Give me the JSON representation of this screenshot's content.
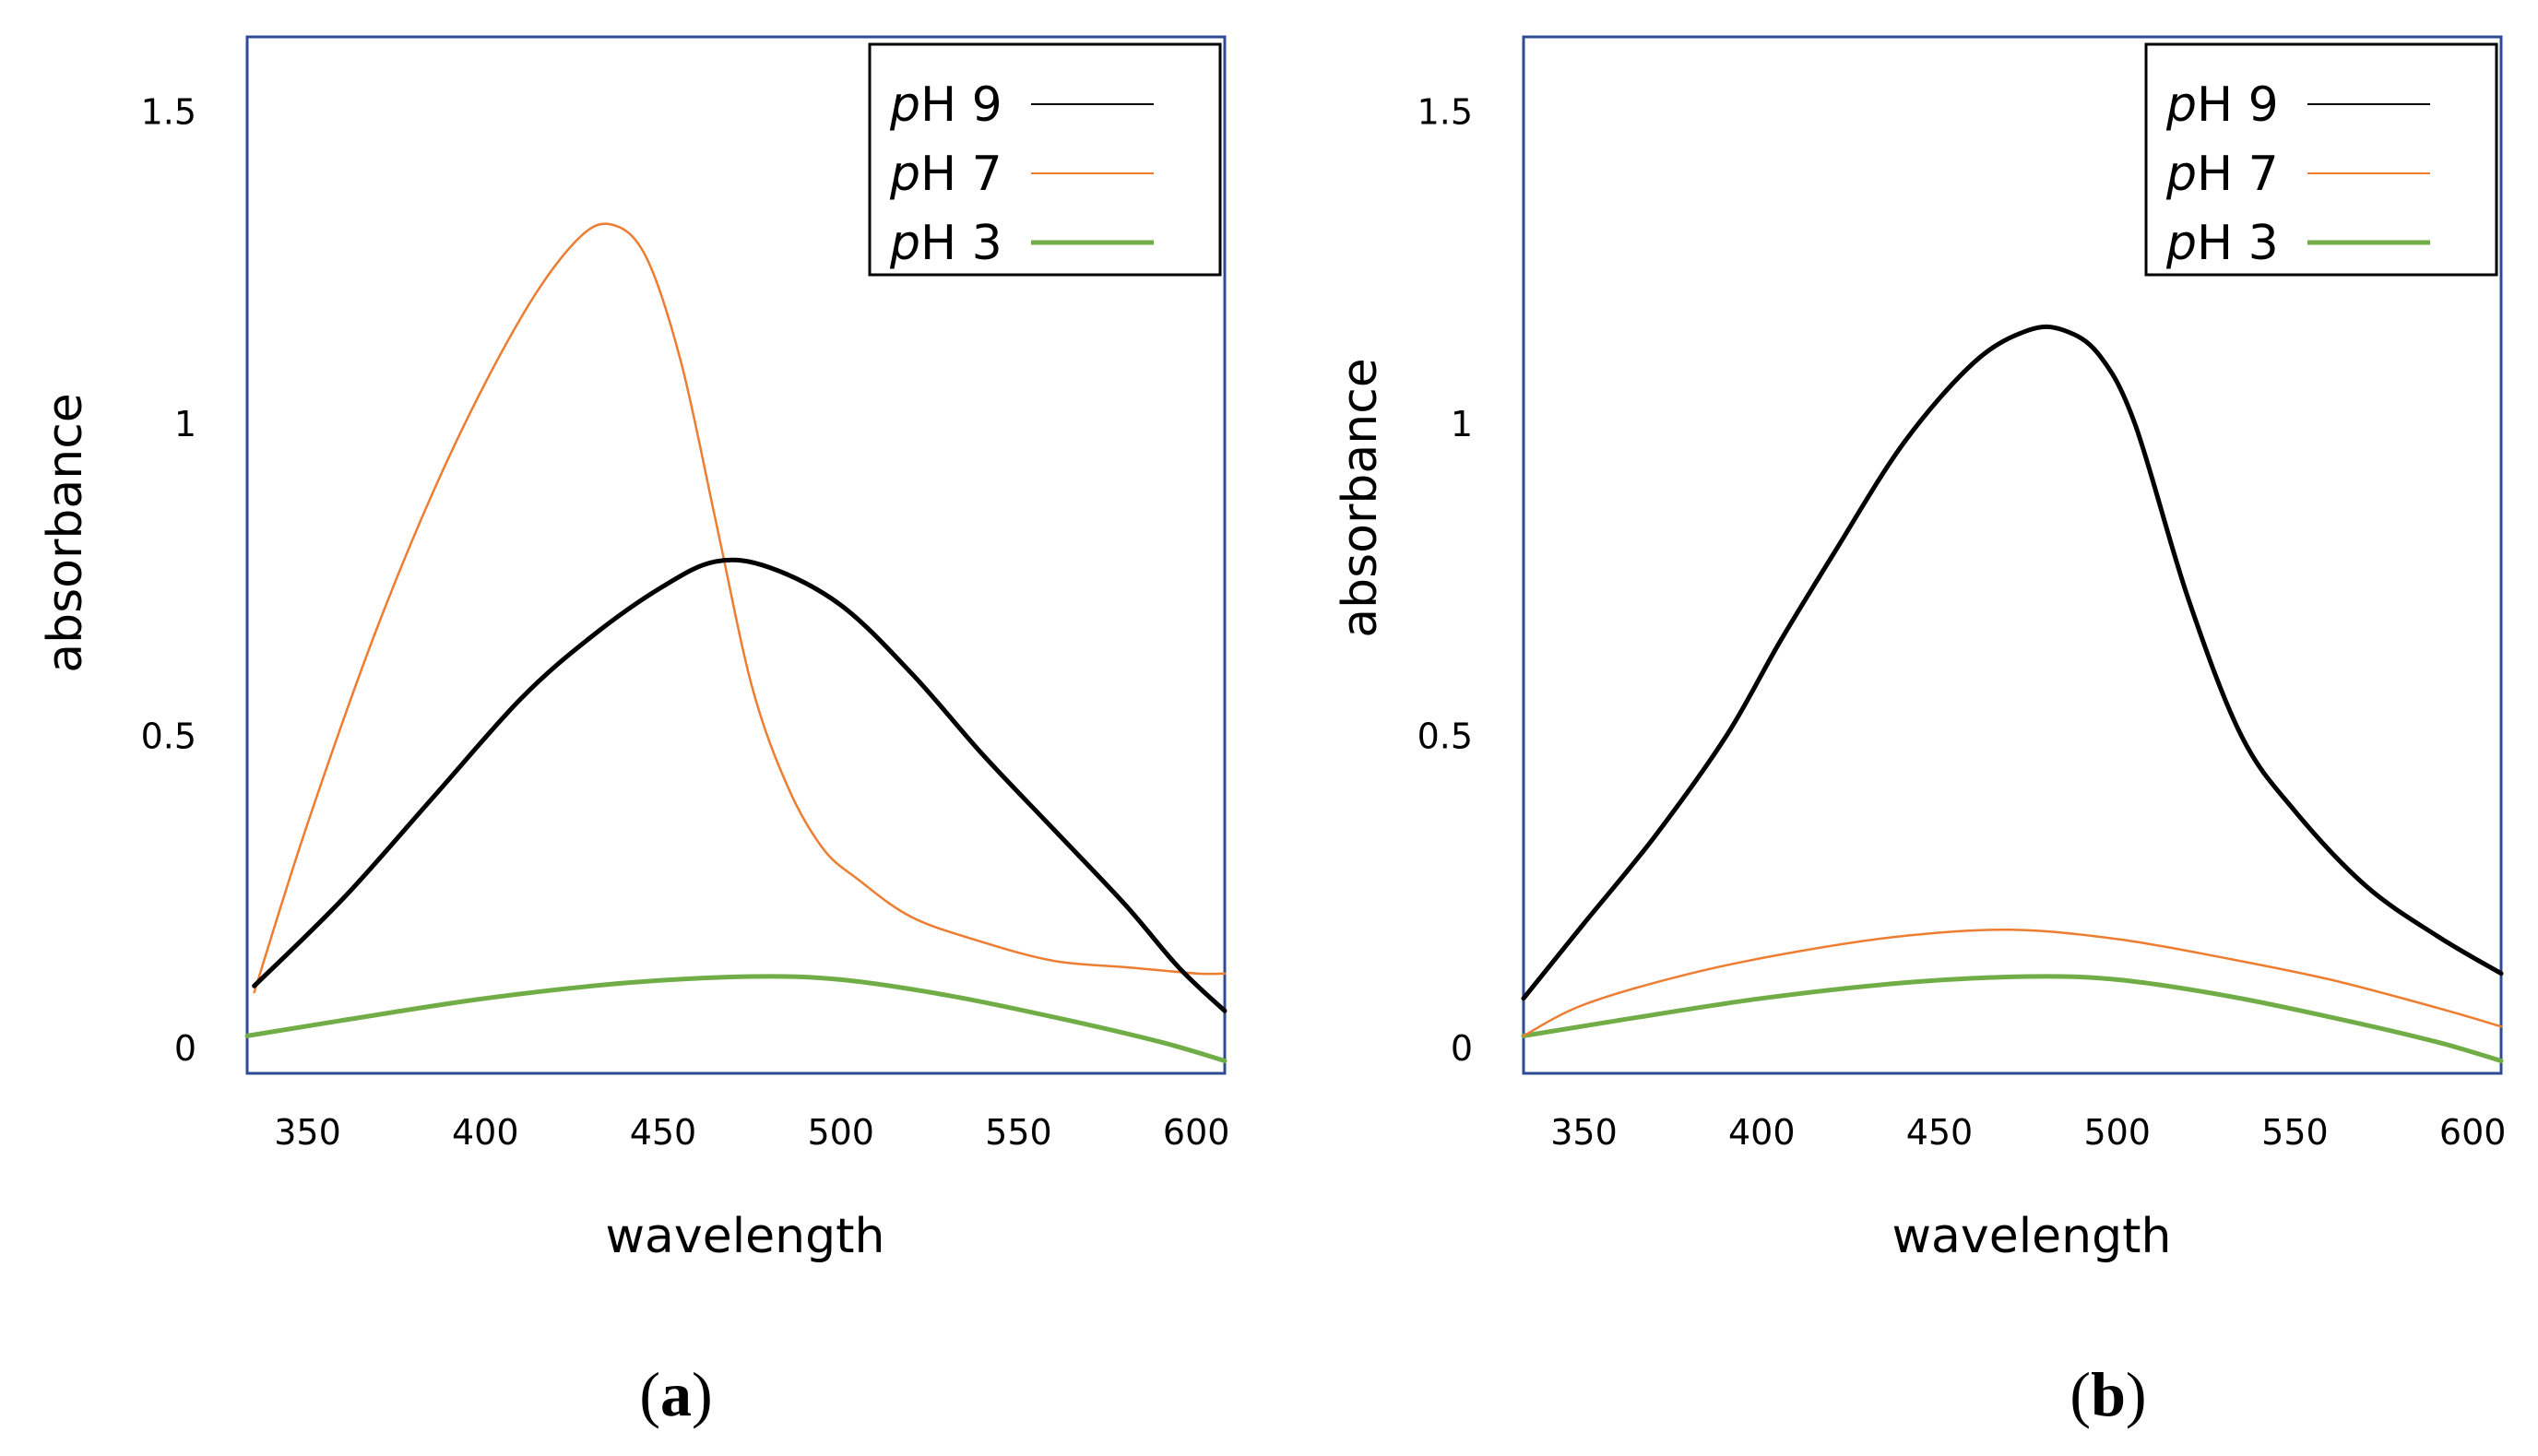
{
  "colors": {
    "frame": "#2e4b94",
    "pH9": "#000000",
    "pH7": "#ed7d31",
    "pH3": "#70ad47"
  },
  "chart_data": [
    {
      "type": "line",
      "panel": "(a)",
      "panel_label_open": "(",
      "panel_label_letter": "a",
      "panel_label_close": ")",
      "xlabel": "wavelength",
      "ylabel": "absorbance",
      "xlim": [
        333,
        608
      ],
      "ylim": [
        -0.04,
        1.62
      ],
      "xticks": [
        350,
        400,
        450,
        500,
        550,
        600
      ],
      "xtick_labels": [
        "350",
        "400",
        "450",
        "500",
        "550",
        "600"
      ],
      "yticks": [
        0,
        0.5,
        1,
        1.5
      ],
      "ytick_labels": [
        "0",
        "0.5",
        "1",
        "1.5"
      ],
      "legend_position": "top-right",
      "series": [
        {
          "name": "pH 9",
          "legend_italic": "p",
          "legend_rest": "H 9",
          "color_key": "pH9",
          "stroke": "thick",
          "x": [
            335,
            360,
            385,
            410,
            430,
            450,
            465,
            480,
            500,
            520,
            540,
            560,
            580,
            595,
            608
          ],
          "values": [
            0.1,
            0.24,
            0.4,
            0.56,
            0.66,
            0.74,
            0.78,
            0.77,
            0.71,
            0.6,
            0.47,
            0.35,
            0.23,
            0.13,
            0.06
          ]
        },
        {
          "name": "pH 7",
          "legend_italic": "p",
          "legend_rest": "H 7",
          "color_key": "pH7",
          "stroke": "thin",
          "x": [
            335,
            350,
            370,
            390,
            410,
            425,
            435,
            445,
            455,
            465,
            475,
            485,
            495,
            505,
            520,
            540,
            560,
            580,
            600,
            608
          ],
          "values": [
            0.09,
            0.36,
            0.68,
            0.95,
            1.17,
            1.29,
            1.32,
            1.27,
            1.1,
            0.84,
            0.58,
            0.42,
            0.32,
            0.27,
            0.21,
            0.17,
            0.14,
            0.13,
            0.12,
            0.12
          ]
        },
        {
          "name": "pH 3",
          "legend_italic": "p",
          "legend_rest": "H 3",
          "color_key": "pH3",
          "stroke": "thick",
          "x": [
            333,
            360,
            400,
            440,
            475,
            500,
            530,
            560,
            590,
            608
          ],
          "values": [
            0.02,
            0.045,
            0.08,
            0.105,
            0.115,
            0.11,
            0.085,
            0.05,
            0.01,
            -0.02
          ]
        }
      ]
    },
    {
      "type": "line",
      "panel": "(b)",
      "panel_label_open": "(",
      "panel_label_letter": "b",
      "panel_label_close": ")",
      "xlabel": "wavelength",
      "ylabel": "absorbance",
      "xlim": [
        333,
        608
      ],
      "ylim": [
        -0.04,
        1.62
      ],
      "xticks": [
        350,
        400,
        450,
        500,
        550,
        600
      ],
      "xtick_labels": [
        "350",
        "400",
        "450",
        "500",
        "550",
        "600"
      ],
      "yticks": [
        0,
        0.5,
        1,
        1.5
      ],
      "ytick_labels": [
        "0",
        "0.5",
        "1",
        "1.5"
      ],
      "legend_position": "top-right",
      "series": [
        {
          "name": "pH 9",
          "legend_italic": "p",
          "legend_rest": "H 9",
          "color_key": "pH9",
          "stroke": "thick",
          "x": [
            333,
            350,
            370,
            390,
            405,
            420,
            440,
            460,
            475,
            485,
            495,
            505,
            520,
            535,
            550,
            570,
            590,
            608
          ],
          "values": [
            0.08,
            0.2,
            0.34,
            0.5,
            0.65,
            0.79,
            0.97,
            1.1,
            1.15,
            1.15,
            1.11,
            1.0,
            0.72,
            0.5,
            0.38,
            0.26,
            0.18,
            0.12
          ]
        },
        {
          "name": "pH 7",
          "legend_italic": "p",
          "legend_rest": "H 7",
          "color_key": "pH7",
          "stroke": "thin",
          "x": [
            333,
            350,
            380,
            410,
            440,
            470,
            500,
            530,
            560,
            590,
            608
          ],
          "values": [
            0.02,
            0.07,
            0.12,
            0.155,
            0.18,
            0.19,
            0.175,
            0.145,
            0.11,
            0.065,
            0.035
          ]
        },
        {
          "name": "pH 3",
          "legend_italic": "p",
          "legend_rest": "H 3",
          "color_key": "pH3",
          "stroke": "thick",
          "x": [
            333,
            360,
            400,
            440,
            475,
            500,
            530,
            560,
            590,
            608
          ],
          "values": [
            0.02,
            0.045,
            0.08,
            0.105,
            0.115,
            0.11,
            0.085,
            0.05,
            0.01,
            -0.02
          ]
        }
      ]
    }
  ]
}
